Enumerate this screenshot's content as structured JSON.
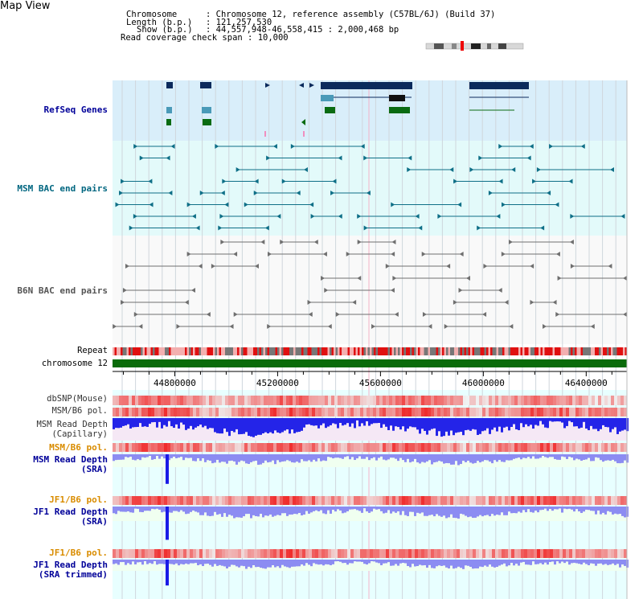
{
  "title": "Map View",
  "info": {
    "chromosome_key": "Chromosome",
    "chromosome_val": "Chromosome 12, reference assembly (C57BL/6J) (Build 37)",
    "length_key": "Length (b.p.)",
    "length_val": "121,257,530",
    "show_key": "Show (b.p.)",
    "show_val": "44,557,948-46,558,415 : 2,000,468 bp",
    "coverage_key": "Read coverage check span",
    "coverage_val": "10,000",
    "sep": ":"
  },
  "tracks": {
    "refseq": "RefSeq Genes",
    "msm_bac": "MSM BAC end pairs",
    "b6n_bac": "B6N BAC end pairs",
    "repeat": "Repeat",
    "chromosome": "chromosome 12",
    "dbsnp": "dbSNP(Mouse)",
    "msm_b6_pol_1": "MSM/B6 pol.",
    "msm_depth_cap_1": "MSM Read Depth",
    "msm_depth_cap_2": "(Capillary)",
    "msm_b6_pol_2": "MSM/B6 pol.",
    "msm_depth_sra_1": "MSM Read Depth",
    "msm_depth_sra_2": "(SRA)",
    "jf1_pol_1": "JF1/B6 pol.",
    "jf1_depth_sra_1": "JF1 Read Depth",
    "jf1_depth_sra_2": "(SRA)",
    "jf1_pol_2": "JF1/B6 pol.",
    "jf1_depth_trim_1": "JF1 Read Depth",
    "jf1_depth_trim_2": "(SRA trimmed)"
  },
  "axis": {
    "ticks": [
      "44800000",
      "45200000",
      "45600000",
      "46000000",
      "46400000"
    ],
    "tick_values": [
      44800000,
      45200000,
      45600000,
      46000000,
      46400000
    ],
    "range": [
      44557948,
      46558415
    ]
  },
  "colors": {
    "refseq_bg": "#d9eefa",
    "msm_bg": "#e3fafa",
    "b6n_bg": "#f7f7f7",
    "refseq_gene": "#0b2a5c",
    "refseq_mid": "#4a9ab8",
    "refseq_green": "#0a6b12",
    "msm_line": "#0e6f87",
    "b6n_line": "#6f6f6f",
    "chromosome_bar": "#0a6b0a",
    "label_blue": "#000099",
    "label_teal": "#006680",
    "label_orange": "#d98c00",
    "depth_blue": "#1a1ae6",
    "depth_light": "#8c8cf2"
  }
}
